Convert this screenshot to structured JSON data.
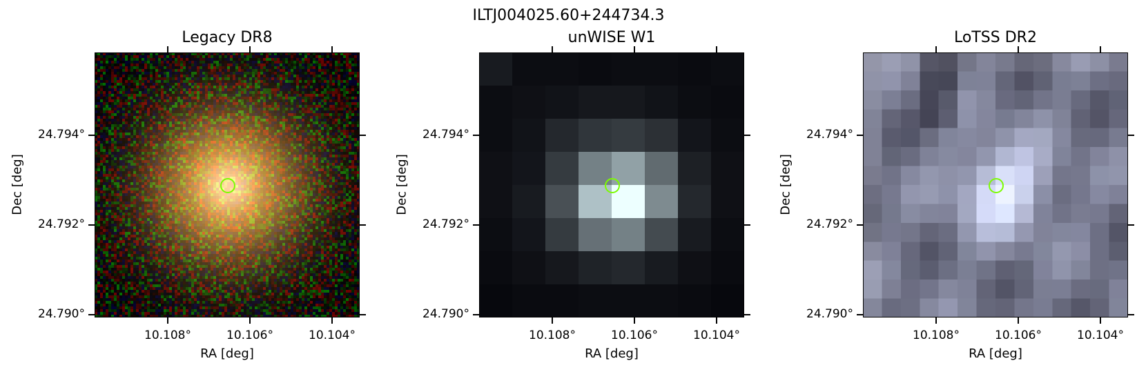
{
  "figure": {
    "title": "ILTJ004025.60+244734.3",
    "panels": [
      {
        "title": "Legacy DR8",
        "kind": "legacy"
      },
      {
        "title": "unWISE W1",
        "kind": "unwise"
      },
      {
        "title": "LoTSS DR2",
        "kind": "lotss"
      }
    ],
    "xlabel": "RA [deg]",
    "ylabel": "Dec [deg]",
    "xticks": [
      "10.108°",
      "10.106°",
      "10.104°"
    ],
    "yticks": [
      "24.794°",
      "24.792°",
      "24.790°"
    ],
    "marker_color": "#7cfc00"
  }
}
